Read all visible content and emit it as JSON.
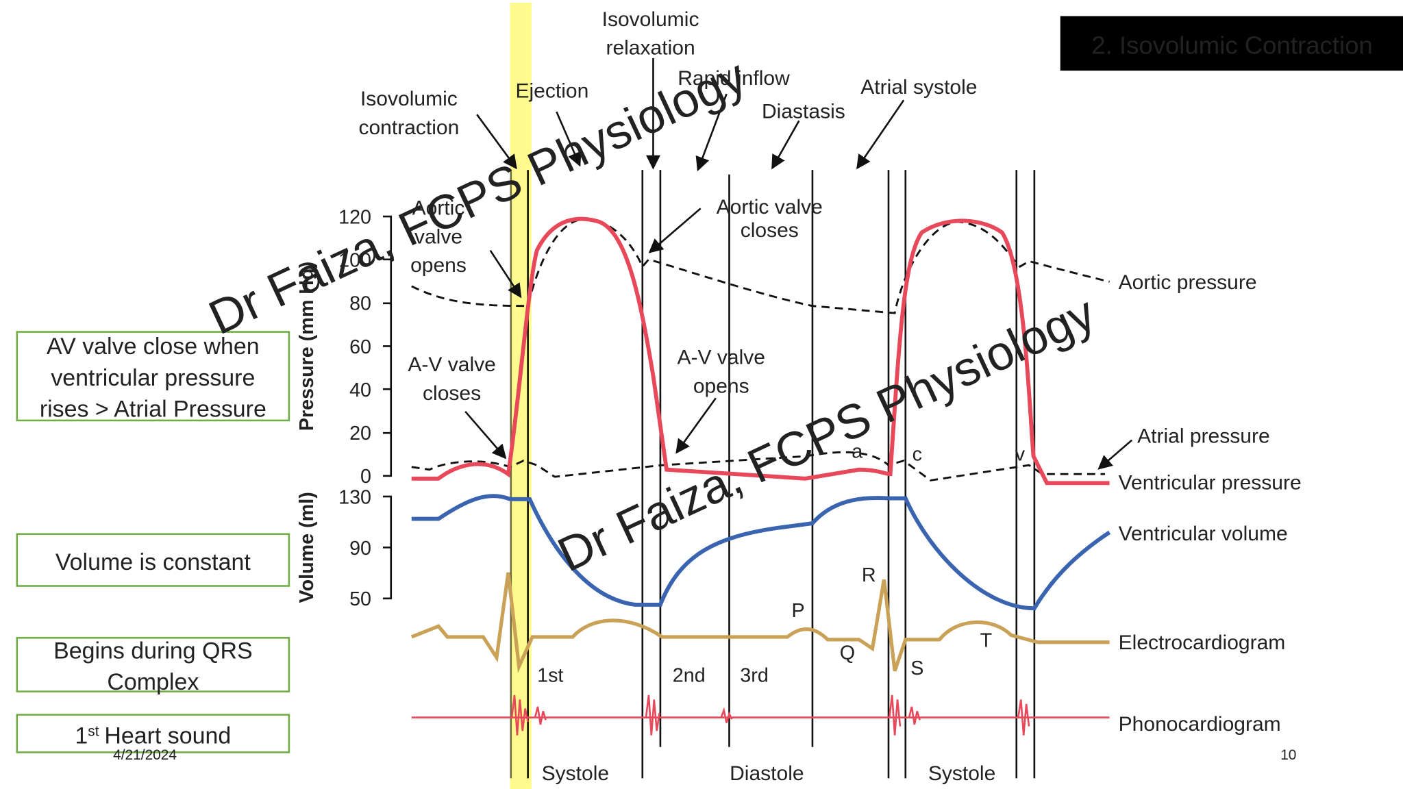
{
  "header": {
    "title": "2. Isovolumic Contraction"
  },
  "notes": [
    [
      "AV valve close when",
      "ventricular pressure",
      "rises > Atrial Pressure"
    ],
    [
      "Volume is constant"
    ],
    [
      "Begins during QRS",
      "Complex"
    ],
    {
      "number": "1",
      "suffix": "st",
      "text": "Heart sound"
    }
  ],
  "diagram": {
    "phases": [
      [
        "Isovolumic",
        "contraction"
      ],
      [
        "Ejection"
      ],
      [
        "Isovolumic",
        "relaxation"
      ],
      [
        "Rapid inflow"
      ],
      [
        "Diastasis"
      ],
      [
        "Atrial systole"
      ]
    ],
    "events": [
      [
        "Aortic",
        "valve",
        "opens"
      ],
      [
        "Aortic valve",
        "closes"
      ],
      [
        "A-V valve",
        "closes"
      ],
      [
        "A-V valve",
        "opens"
      ]
    ],
    "curves": [
      "Aortic pressure",
      "Atrial pressure",
      "Ventricular pressure",
      "Ventricular volume",
      "Electrocardiogram",
      "Phonocardiogram"
    ],
    "pressure_axis": {
      "label": "Pressure (mm Hg)",
      "ticks": [
        120,
        100,
        80,
        60,
        40,
        20,
        0
      ]
    },
    "volume_axis": {
      "label": "Volume (ml)",
      "ticks": [
        130,
        90,
        50
      ]
    },
    "waves": [
      "P",
      "Q",
      "R",
      "S",
      "T",
      "a",
      "c",
      "v"
    ],
    "heart_sounds": [
      "1st",
      "2nd",
      "3rd"
    ],
    "periods": [
      "Systole",
      "Diastole",
      "Systole"
    ]
  },
  "watermarks": [
    "Dr Faiza, FCPS Physiology",
    "Dr Faiza, FCPS Physiology"
  ],
  "footer": {
    "date": "4/21/2024",
    "page": "10"
  }
}
